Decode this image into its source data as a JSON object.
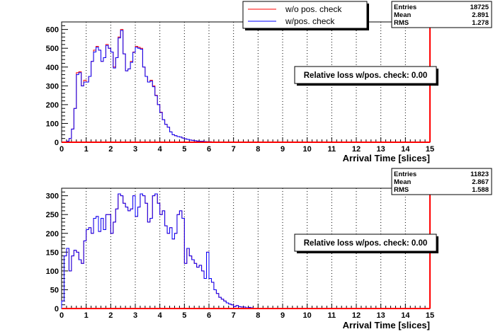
{
  "legend": {
    "items": [
      {
        "label": "w/o pos. check",
        "color": "#ff0000"
      },
      {
        "label": "w/pos. check",
        "color": "#0000ff"
      }
    ]
  },
  "chart_data": [
    {
      "type": "histogram",
      "xlabel": "Arrival Time [slices]",
      "ylabel": "",
      "xlim": [
        0,
        15
      ],
      "ylim": [
        0,
        640
      ],
      "xticks": [
        0,
        1,
        2,
        3,
        4,
        5,
        6,
        7,
        8,
        9,
        10,
        11,
        12,
        13,
        14,
        15
      ],
      "yticks": [
        0,
        100,
        200,
        300,
        400,
        500,
        600
      ],
      "grid": "vertical dotted",
      "annotation": "Relative loss w/pos. check: 0.00",
      "stats": {
        "Entries": "18725",
        "Mean": "2.891",
        "RMS": "1.278"
      },
      "bin_width": 0.1,
      "series": [
        {
          "name": "w/o pos. check",
          "color": "#ff0000",
          "values": [
            0,
            0,
            5,
            20,
            70,
            180,
            370,
            375,
            300,
            330,
            320,
            350,
            430,
            490,
            510,
            490,
            430,
            450,
            520,
            500,
            480,
            400,
            450,
            560,
            600,
            470,
            380,
            390,
            430,
            480,
            510,
            505,
            500,
            400,
            350,
            320,
            330,
            300,
            250,
            200,
            160,
            120,
            95,
            80,
            55,
            40,
            35,
            30,
            28,
            22,
            18,
            15,
            12,
            10,
            8,
            6,
            5,
            5,
            4,
            3,
            3,
            2,
            2,
            2,
            1,
            1,
            1,
            0,
            0,
            0,
            0,
            0,
            0,
            0,
            0,
            0,
            0,
            0,
            0,
            0,
            0,
            0,
            0,
            0,
            0,
            0,
            0,
            0,
            0,
            0,
            0,
            0,
            0,
            0,
            0,
            0,
            0,
            0,
            0,
            0,
            0,
            0,
            0,
            0,
            0,
            0,
            0,
            0,
            0,
            0,
            0,
            0,
            0,
            0,
            0,
            0,
            0,
            0,
            0,
            0,
            0,
            0,
            0,
            0,
            0,
            0,
            0,
            0,
            0,
            0,
            0,
            0,
            0,
            0,
            0,
            0,
            0,
            0,
            0,
            0,
            0,
            0,
            0,
            0,
            0,
            0,
            0,
            0,
            0,
            0
          ]
        },
        {
          "name": "w/pos. check",
          "color": "#0000ff",
          "values": [
            0,
            0,
            5,
            20,
            70,
            180,
            360,
            370,
            300,
            320,
            320,
            350,
            430,
            480,
            505,
            490,
            430,
            450,
            515,
            500,
            480,
            395,
            450,
            555,
            595,
            470,
            380,
            390,
            425,
            478,
            505,
            500,
            495,
            400,
            350,
            320,
            325,
            295,
            248,
            200,
            158,
            120,
            95,
            80,
            55,
            40,
            35,
            30,
            28,
            22,
            18,
            15,
            12,
            10,
            8,
            6,
            5,
            5,
            4,
            3,
            3,
            2,
            2,
            2,
            1,
            1,
            1,
            0,
            0,
            0,
            0,
            0,
            0,
            0,
            0,
            0,
            0,
            0,
            0,
            0,
            0,
            0,
            0,
            0,
            0,
            0,
            0,
            0,
            0,
            0,
            0,
            0,
            0,
            0,
            0,
            0,
            0,
            0,
            0,
            0,
            0,
            0,
            0,
            0,
            0,
            0,
            0,
            0,
            0,
            0,
            0,
            0,
            0,
            0,
            0,
            0,
            0,
            0,
            0,
            0,
            0,
            0,
            0,
            0,
            0,
            0,
            0,
            0,
            0,
            0,
            0,
            0,
            0,
            0,
            0,
            0,
            0,
            0,
            0,
            0,
            0,
            0,
            0,
            0,
            0,
            0,
            0,
            0,
            0,
            0
          ]
        }
      ]
    },
    {
      "type": "histogram",
      "xlabel": "Arrival Time [slices]",
      "ylabel": "",
      "xlim": [
        0,
        15
      ],
      "ylim": [
        0,
        320
      ],
      "xticks": [
        0,
        1,
        2,
        3,
        4,
        5,
        6,
        7,
        8,
        9,
        10,
        11,
        12,
        13,
        14,
        15
      ],
      "yticks": [
        0,
        50,
        100,
        150,
        200,
        250,
        300
      ],
      "grid": "vertical dotted",
      "annotation": "Relative loss w/pos. check: 0.00",
      "stats": {
        "Entries": "11823",
        "Mean": "2.867",
        "RMS": "1.588"
      },
      "bin_width": 0.1,
      "series": [
        {
          "name": "w/o pos. check",
          "color": "#ff0000",
          "values": [
            20,
            140,
            160,
            100,
            140,
            155,
            150,
            130,
            120,
            180,
            210,
            215,
            200,
            240,
            245,
            205,
            240,
            210,
            250,
            250,
            200,
            230,
            265,
            305,
            300,
            280,
            270,
            260,
            265,
            300,
            245,
            270,
            305,
            300,
            280,
            230,
            240,
            300,
            305,
            280,
            250,
            260,
            220,
            200,
            215,
            185,
            200,
            250,
            260,
            240,
            120,
            160,
            140,
            130,
            120,
            110,
            115,
            100,
            80,
            150,
            80,
            70,
            50,
            40,
            30,
            25,
            20,
            15,
            12,
            10,
            5,
            8,
            5,
            4,
            4,
            2,
            3,
            2,
            1,
            1,
            1,
            1,
            0,
            0,
            0,
            0,
            0,
            0,
            0,
            0,
            0,
            0,
            0,
            0,
            0,
            0,
            0,
            0,
            0,
            0,
            0,
            0,
            0,
            0,
            0,
            0,
            0,
            0,
            0,
            0,
            0,
            0,
            0,
            0,
            0,
            0,
            0,
            0,
            0,
            0,
            0,
            0,
            0,
            0,
            0,
            0,
            0,
            0,
            0,
            0,
            0,
            0,
            0,
            0,
            0,
            0,
            0,
            0,
            0,
            0,
            0,
            0,
            0,
            0,
            0,
            0,
            0,
            0,
            0,
            0
          ]
        },
        {
          "name": "w/pos. check",
          "color": "#0000ff",
          "values": [
            20,
            140,
            160,
            100,
            140,
            155,
            150,
            130,
            120,
            180,
            210,
            215,
            200,
            240,
            245,
            205,
            240,
            210,
            250,
            250,
            200,
            230,
            265,
            305,
            300,
            280,
            270,
            260,
            265,
            300,
            245,
            270,
            305,
            300,
            280,
            230,
            240,
            300,
            305,
            280,
            250,
            260,
            220,
            200,
            215,
            185,
            200,
            250,
            260,
            240,
            120,
            160,
            140,
            130,
            120,
            110,
            115,
            100,
            80,
            150,
            80,
            70,
            50,
            40,
            30,
            25,
            20,
            15,
            12,
            10,
            5,
            8,
            5,
            4,
            4,
            2,
            3,
            2,
            1,
            1,
            1,
            1,
            0,
            0,
            0,
            0,
            0,
            0,
            0,
            0,
            0,
            0,
            0,
            0,
            0,
            0,
            0,
            0,
            0,
            0,
            0,
            0,
            0,
            0,
            0,
            0,
            0,
            0,
            0,
            0,
            0,
            0,
            0,
            0,
            0,
            0,
            0,
            0,
            0,
            0,
            0,
            0,
            0,
            0,
            0,
            0,
            0,
            0,
            0,
            0,
            0,
            0,
            0,
            0,
            0,
            0,
            0,
            0,
            0,
            0,
            0,
            0,
            0,
            0,
            0,
            0,
            0,
            0,
            0,
            0
          ]
        }
      ]
    }
  ]
}
